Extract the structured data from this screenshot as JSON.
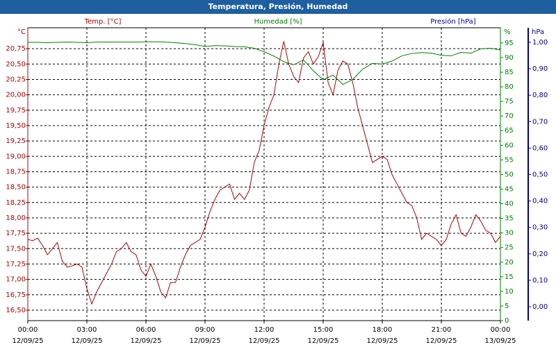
{
  "chart_data": {
    "type": "line",
    "title": "Temperatura, Presión, Humedad",
    "xlim": [
      0,
      24
    ],
    "xticks": [
      {
        "value": 0,
        "label": [
          "00:00",
          "12/09/25"
        ]
      },
      {
        "value": 3,
        "label": [
          "03:00",
          "12/09/25"
        ]
      },
      {
        "value": 6,
        "label": [
          "06:00",
          "12/09/25"
        ]
      },
      {
        "value": 9,
        "label": [
          "09:00",
          "12/09/25"
        ]
      },
      {
        "value": 12,
        "label": [
          "12:00",
          "12/09/25"
        ]
      },
      {
        "value": 15,
        "label": [
          "15:00",
          "12/09/25"
        ]
      },
      {
        "value": 18,
        "label": [
          "18:00",
          "12/09/25"
        ]
      },
      {
        "value": 21,
        "label": [
          "21:00",
          "12/09/25"
        ]
      },
      {
        "value": 24,
        "label": [
          "00:00",
          "13/09/25"
        ]
      }
    ],
    "grid": true,
    "axes": [
      {
        "name": "Temp. [°C]",
        "unit": "°C",
        "color": "#b00000",
        "lim": [
          16.33,
          21.09
        ],
        "ticks": [
          {
            "value": 16.5,
            "label": "16,50"
          },
          {
            "value": 16.75,
            "label": "16,75"
          },
          {
            "value": 17,
            "label": "17,00"
          },
          {
            "value": 17.25,
            "label": "17,25"
          },
          {
            "value": 17.5,
            "label": "17,50"
          },
          {
            "value": 17.75,
            "label": "17,75"
          },
          {
            "value": 18,
            "label": "18,00"
          },
          {
            "value": 18.25,
            "label": "18,25"
          },
          {
            "value": 18.5,
            "label": "18,50"
          },
          {
            "value": 18.75,
            "label": "18,75"
          },
          {
            "value": 19,
            "label": "19,00"
          },
          {
            "value": 19.25,
            "label": "19,25"
          },
          {
            "value": 19.5,
            "label": "19,50"
          },
          {
            "value": 19.75,
            "label": "19,75"
          },
          {
            "value": 20,
            "label": "20,00"
          },
          {
            "value": 20.25,
            "label": "20,25"
          },
          {
            "value": 20.5,
            "label": "20,50"
          },
          {
            "value": 20.75,
            "label": "20,75"
          }
        ]
      },
      {
        "name": "Humedad [%]",
        "unit": "%",
        "color": "#008000",
        "lim": [
          0,
          100.2
        ],
        "ticks": [
          0,
          5,
          10,
          15,
          20,
          25,
          30,
          35,
          40,
          45,
          50,
          55,
          60,
          65,
          70,
          75,
          80,
          85,
          90,
          95
        ]
      },
      {
        "name": "Presión [hPa]",
        "unit": "hPa",
        "color": "#000090",
        "lim": [
          -0.0525,
          1.055
        ],
        "ticks": [
          {
            "value": 0,
            "label": "0,00"
          },
          {
            "value": 0.1,
            "label": "0,10"
          },
          {
            "value": 0.2,
            "label": "0,20"
          },
          {
            "value": 0.3,
            "label": "0,30"
          },
          {
            "value": 0.4,
            "label": "0,40"
          },
          {
            "value": 0.5,
            "label": "0,50"
          },
          {
            "value": 0.6,
            "label": "0,60"
          },
          {
            "value": 0.7,
            "label": "0,70"
          },
          {
            "value": 0.8,
            "label": "0,80"
          },
          {
            "value": 0.9,
            "label": "0,90"
          },
          {
            "value": 1,
            "label": "1,00"
          }
        ]
      }
    ],
    "series": [
      {
        "name": "Temp. [°C]",
        "axis": 0,
        "color": "#b00000",
        "x": [
          0,
          0.25,
          0.5,
          0.75,
          1,
          1.25,
          1.5,
          1.75,
          2,
          2.25,
          2.5,
          2.75,
          3,
          3.25,
          3.5,
          3.75,
          4,
          4.25,
          4.5,
          4.75,
          5,
          5.25,
          5.5,
          5.75,
          6,
          6.25,
          6.5,
          6.75,
          7,
          7.25,
          7.5,
          7.75,
          8,
          8.25,
          8.5,
          8.75,
          9,
          9.25,
          9.5,
          9.75,
          10,
          10.25,
          10.5,
          10.75,
          11,
          11.25,
          11.5,
          11.75,
          12,
          12.25,
          12.5,
          12.75,
          13,
          13.25,
          13.5,
          13.75,
          14,
          14.25,
          14.5,
          14.75,
          15,
          15.25,
          15.5,
          15.75,
          16,
          16.25,
          16.5,
          16.75,
          17,
          17.25,
          17.5,
          17.75,
          18,
          18.25,
          18.5,
          18.75,
          19,
          19.25,
          19.5,
          19.75,
          20,
          20.25,
          20.5,
          20.75,
          21,
          21.25,
          21.5,
          21.75,
          22,
          22.25,
          22.5,
          22.75,
          23,
          23.25,
          23.5,
          23.75,
          24
        ],
        "values": [
          17.65,
          17.63,
          17.67,
          17.55,
          17.4,
          17.5,
          17.6,
          17.3,
          17.2,
          17.22,
          17.25,
          17.2,
          16.85,
          16.6,
          16.8,
          16.95,
          17.1,
          17.25,
          17.45,
          17.5,
          17.6,
          17.45,
          17.4,
          17.15,
          17.05,
          17.25,
          17.05,
          16.8,
          16.7,
          16.95,
          16.95,
          17.2,
          17.4,
          17.55,
          17.6,
          17.65,
          17.85,
          18.1,
          18.3,
          18.45,
          18.5,
          18.55,
          18.3,
          18.4,
          18.3,
          18.45,
          18.9,
          19.1,
          19.5,
          19.8,
          20,
          20.5,
          20.87,
          20.5,
          20.3,
          20.2,
          20.6,
          20.7,
          20.5,
          20.62,
          20.85,
          20.2,
          20,
          20.4,
          20.55,
          20.5,
          20.2,
          19.8,
          19.5,
          19.2,
          18.9,
          18.95,
          19,
          18.95,
          18.7,
          18.55,
          18.4,
          18.25,
          18.2,
          18,
          17.65,
          17.75,
          17.7,
          17.65,
          17.55,
          17.65,
          17.9,
          18.05,
          17.75,
          17.7,
          17.85,
          18.05,
          17.95,
          17.8,
          17.75,
          17.6,
          17.7
        ]
      },
      {
        "name": "Humedad [%]",
        "axis": 1,
        "color": "#008000",
        "x": [
          0,
          0.5,
          1,
          1.5,
          2,
          2.5,
          3,
          3.5,
          4,
          4.5,
          5,
          5.5,
          6,
          6.5,
          7,
          7.5,
          8,
          8.5,
          9,
          9.5,
          10,
          10.5,
          11,
          11.5,
          12,
          12.5,
          13,
          13.5,
          14,
          14.5,
          15,
          15.5,
          16,
          16.5,
          17,
          17.5,
          18,
          18.5,
          19,
          19.5,
          20,
          20.5,
          21,
          21.5,
          22,
          22.5,
          23,
          23.5,
          24
        ],
        "values": [
          95.2,
          95.2,
          95.1,
          95.2,
          95.3,
          95.2,
          95.1,
          95.3,
          95.3,
          95.3,
          95.3,
          95.3,
          95.4,
          95.4,
          95.3,
          95.1,
          94.8,
          94.4,
          93.8,
          94.1,
          94.0,
          93.8,
          93.7,
          93.2,
          92.0,
          90.5,
          88.6,
          87.5,
          89.2,
          85.5,
          82.4,
          84.0,
          80.8,
          82.5,
          86.0,
          88.0,
          87.8,
          88.8,
          90.6,
          91.4,
          91.7,
          91.5,
          90.8,
          90.6,
          91.8,
          91.5,
          93.0,
          93.2,
          92.6
        ]
      }
    ]
  }
}
